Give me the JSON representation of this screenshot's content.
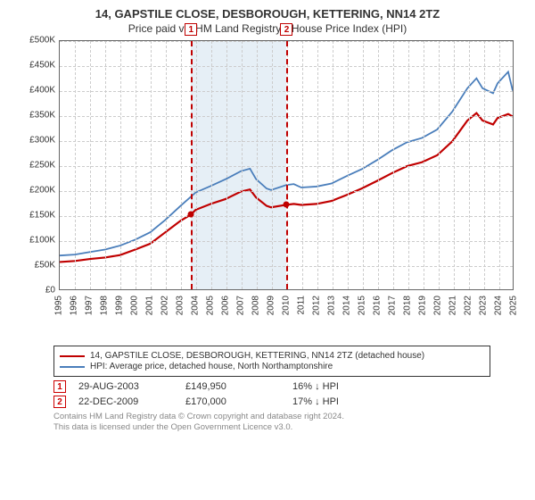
{
  "title": "14, GAPSTILE CLOSE, DESBOROUGH, KETTERING, NN14 2TZ",
  "subtitle": "Price paid vs. HM Land Registry's House Price Index (HPI)",
  "chart": {
    "type": "line",
    "background_color": "#ffffff",
    "grid_color": "#cccccc",
    "border_color": "#666666",
    "ylim": [
      0,
      500000
    ],
    "ytick_step": 50000,
    "y_ticks": [
      "£0",
      "£50K",
      "£100K",
      "£150K",
      "£200K",
      "£250K",
      "£300K",
      "£350K",
      "£400K",
      "£450K",
      "£500K"
    ],
    "x_years": [
      1995,
      1996,
      1997,
      1998,
      1999,
      2000,
      2001,
      2002,
      2003,
      2004,
      2005,
      2006,
      2007,
      2008,
      2009,
      2010,
      2011,
      2012,
      2013,
      2014,
      2015,
      2016,
      2017,
      2018,
      2019,
      2020,
      2021,
      2022,
      2023,
      2024,
      2025
    ],
    "band": {
      "start_year": 2003.66,
      "end_year": 2009.97,
      "color": "#d6e4f0"
    },
    "series": [
      {
        "name": "property",
        "label": "14, GAPSTILE CLOSE, DESBOROUGH, KETTERING, NN14 2TZ (detached house)",
        "color": "#c00000",
        "width": 2.2,
        "points": [
          [
            1995,
            55000
          ],
          [
            1996,
            57000
          ],
          [
            1997,
            61000
          ],
          [
            1998,
            64000
          ],
          [
            1999,
            69000
          ],
          [
            2000,
            80000
          ],
          [
            2001,
            92000
          ],
          [
            2002,
            115000
          ],
          [
            2003,
            138000
          ],
          [
            2003.66,
            149950
          ],
          [
            2004,
            160000
          ],
          [
            2005,
            172000
          ],
          [
            2006,
            182000
          ],
          [
            2007,
            197000
          ],
          [
            2007.6,
            201000
          ],
          [
            2008,
            185000
          ],
          [
            2008.7,
            168000
          ],
          [
            2009,
            165000
          ],
          [
            2009.97,
            170000
          ],
          [
            2010.5,
            172000
          ],
          [
            2011,
            170000
          ],
          [
            2012,
            172000
          ],
          [
            2013,
            178000
          ],
          [
            2014,
            190000
          ],
          [
            2015,
            203000
          ],
          [
            2016,
            218000
          ],
          [
            2017,
            234000
          ],
          [
            2018,
            248000
          ],
          [
            2019,
            256000
          ],
          [
            2020,
            270000
          ],
          [
            2021,
            298000
          ],
          [
            2022,
            340000
          ],
          [
            2022.6,
            355000
          ],
          [
            2023,
            340000
          ],
          [
            2023.7,
            332000
          ],
          [
            2024,
            345000
          ],
          [
            2024.7,
            353000
          ],
          [
            2025,
            348000
          ]
        ]
      },
      {
        "name": "hpi",
        "label": "HPI: Average price, detached house, North Northamptonshire",
        "color": "#4a7ebb",
        "width": 1.8,
        "points": [
          [
            1995,
            68000
          ],
          [
            1996,
            70000
          ],
          [
            1997,
            75000
          ],
          [
            1998,
            80000
          ],
          [
            1999,
            88000
          ],
          [
            2000,
            100000
          ],
          [
            2001,
            115000
          ],
          [
            2002,
            140000
          ],
          [
            2003,
            168000
          ],
          [
            2004,
            195000
          ],
          [
            2005,
            208000
          ],
          [
            2006,
            222000
          ],
          [
            2007,
            238000
          ],
          [
            2007.6,
            243000
          ],
          [
            2008,
            222000
          ],
          [
            2008.7,
            203000
          ],
          [
            2009,
            200000
          ],
          [
            2010,
            210000
          ],
          [
            2010.5,
            212000
          ],
          [
            2011,
            205000
          ],
          [
            2012,
            207000
          ],
          [
            2013,
            213000
          ],
          [
            2014,
            228000
          ],
          [
            2015,
            242000
          ],
          [
            2016,
            260000
          ],
          [
            2017,
            280000
          ],
          [
            2018,
            296000
          ],
          [
            2019,
            305000
          ],
          [
            2020,
            322000
          ],
          [
            2021,
            358000
          ],
          [
            2022,
            405000
          ],
          [
            2022.6,
            425000
          ],
          [
            2023,
            405000
          ],
          [
            2023.7,
            395000
          ],
          [
            2024,
            415000
          ],
          [
            2024.7,
            438000
          ],
          [
            2025,
            400000
          ]
        ]
      }
    ],
    "markers": [
      {
        "num": "1",
        "year": 2003.66,
        "value": 149950,
        "color": "#c00000"
      },
      {
        "num": "2",
        "year": 2009.97,
        "value": 170000,
        "color": "#c00000"
      }
    ]
  },
  "legend": {
    "items": [
      {
        "color": "#c00000",
        "text": "14, GAPSTILE CLOSE, DESBOROUGH, KETTERING, NN14 2TZ (detached house)"
      },
      {
        "color": "#4a7ebb",
        "text": "HPI: Average price, detached house, North Northamptonshire"
      }
    ]
  },
  "events": [
    {
      "num": "1",
      "date": "29-AUG-2003",
      "price": "£149,950",
      "diff": "16% ↓ HPI"
    },
    {
      "num": "2",
      "date": "22-DEC-2009",
      "price": "£170,000",
      "diff": "17% ↓ HPI"
    }
  ],
  "attribution": {
    "line1": "Contains HM Land Registry data © Crown copyright and database right 2024.",
    "line2": "This data is licensed under the Open Government Licence v3.0."
  }
}
